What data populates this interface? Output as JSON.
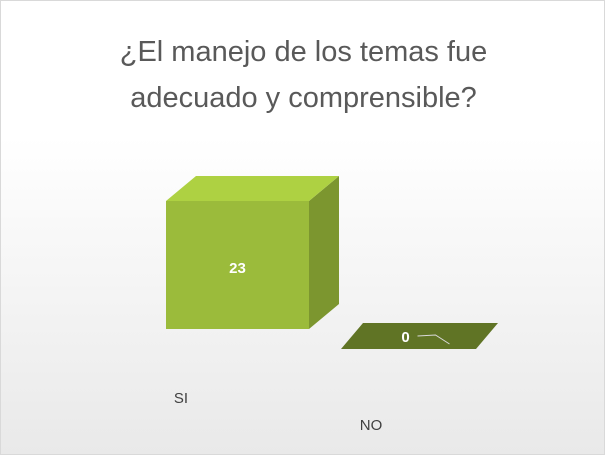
{
  "chart_data": {
    "type": "bar3d",
    "title": "¿El manejo de los temas fue adecuado y comprensible?",
    "categories": [
      "SI",
      "NO"
    ],
    "values": [
      23,
      0
    ],
    "color": "#9bbb3b"
  }
}
